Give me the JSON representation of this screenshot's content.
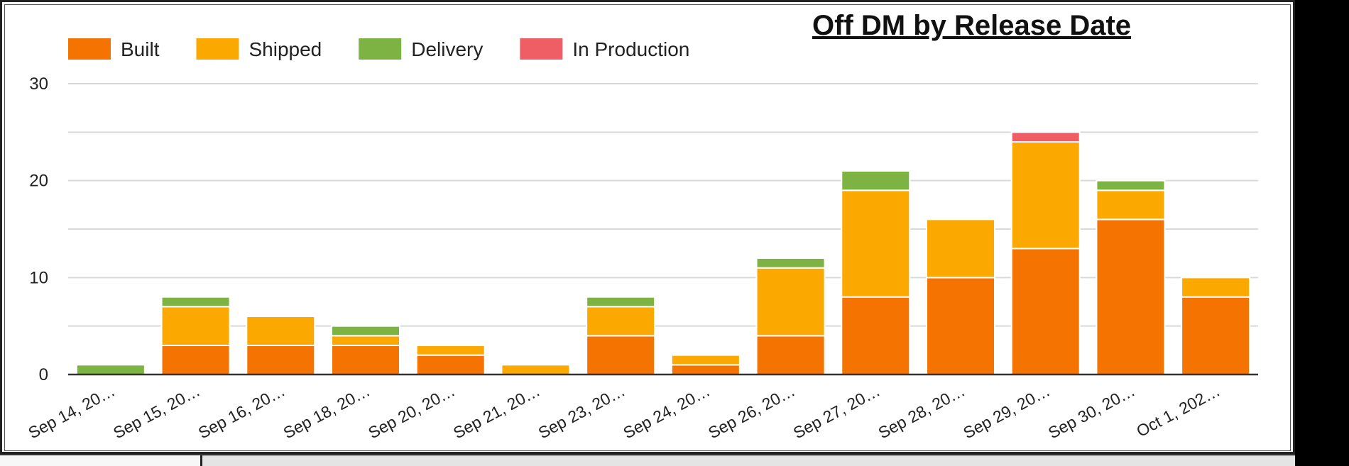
{
  "chart_data": {
    "type": "bar",
    "stacked": true,
    "title": "Off DM by Release Date",
    "xlabel": "",
    "ylabel": "",
    "ylim": [
      0,
      30
    ],
    "yticks": [
      0,
      10,
      20,
      30
    ],
    "grid": true,
    "legend_position": "top-left",
    "categories": [
      "Sep 14, 20…",
      "Sep 15, 20…",
      "Sep 16, 20…",
      "Sep 18, 20…",
      "Sep 20, 20…",
      "Sep 21, 20…",
      "Sep 23, 20…",
      "Sep 24, 20…",
      "Sep 26, 20…",
      "Sep 27, 20…",
      "Sep 28, 20…",
      "Sep 29, 20…",
      "Sep 30, 20…",
      "Oct 1, 202…"
    ],
    "series": [
      {
        "name": "Built",
        "color": "#f57300",
        "values": [
          0,
          3,
          3,
          3,
          2,
          0,
          4,
          1,
          4,
          8,
          10,
          13,
          16,
          8
        ]
      },
      {
        "name": "Shipped",
        "color": "#fba800",
        "values": [
          0,
          4,
          3,
          1,
          1,
          1,
          3,
          1,
          7,
          11,
          6,
          11,
          3,
          2
        ]
      },
      {
        "name": "Delivery",
        "color": "#7cb342",
        "values": [
          1,
          1,
          0,
          1,
          0,
          0,
          1,
          0,
          1,
          2,
          0,
          0,
          1,
          0
        ]
      },
      {
        "name": "In Production",
        "color": "#ef5d65",
        "values": [
          0,
          0,
          0,
          0,
          0,
          0,
          0,
          0,
          0,
          0,
          0,
          1,
          0,
          0
        ]
      }
    ]
  }
}
